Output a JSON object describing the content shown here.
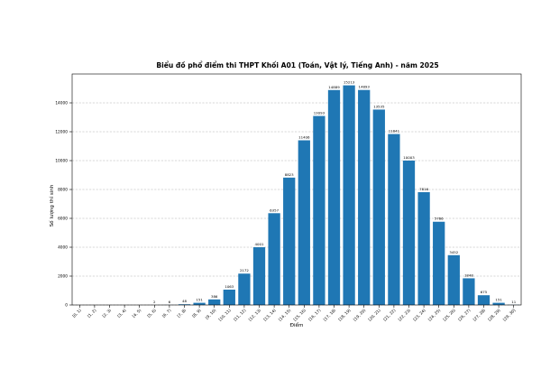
{
  "chart_data": {
    "type": "bar",
    "title": "Biểu đồ phổ điểm thi THPT Khối A01 (Toán, Vật lý, Tiếng Anh) - năm 2025",
    "xlabel": "Điểm",
    "ylabel": "Số lượng thí sinh",
    "categories": [
      "[0, 1)",
      "[1, 2)",
      "[2, 3)",
      "[3, 4)",
      "[4, 5)",
      "[5, 6)",
      "[6, 7)",
      "[7, 8)",
      "[8, 9)",
      "[9, 10)",
      "[10, 11)",
      "[11, 12)",
      "[12, 13)",
      "[13, 14)",
      "[14, 15)",
      "[15, 16)",
      "[16, 17)",
      "[17, 18)",
      "[18, 19)",
      "[19, 20)",
      "[20, 21)",
      "[21, 22)",
      "[22, 23)",
      "[23, 24)",
      "[24, 25)",
      "[25, 26)",
      "[26, 27)",
      "[27, 28)",
      "[28, 29)",
      "[29, 30]"
    ],
    "values": [
      0,
      0,
      0,
      0,
      0,
      2,
      6,
      48,
      151,
      386,
      1063,
      2172,
      4001,
      6357,
      8823,
      11406,
      13093,
      14889,
      15213,
      14893,
      13535,
      11841,
      10003,
      7816,
      5766,
      3452,
      1848,
      675,
      151,
      11
    ],
    "bar_labels": [
      "",
      "",
      "",
      "",
      "",
      "2",
      "6",
      "48",
      "151",
      "386",
      "1063",
      "2172",
      "4001",
      "6357",
      "8823",
      "11406",
      "13093",
      "14889",
      "15213",
      "14893",
      "13535",
      "11841",
      "10003",
      "7816",
      "5766",
      "3452",
      "1848",
      "675",
      "151",
      "11"
    ],
    "yticks": [
      0,
      2000,
      4000,
      6000,
      8000,
      10000,
      12000,
      14000
    ],
    "ylim": [
      0,
      16000
    ],
    "grid": "horizontal dashed",
    "bar_color": "#1f77b4"
  }
}
